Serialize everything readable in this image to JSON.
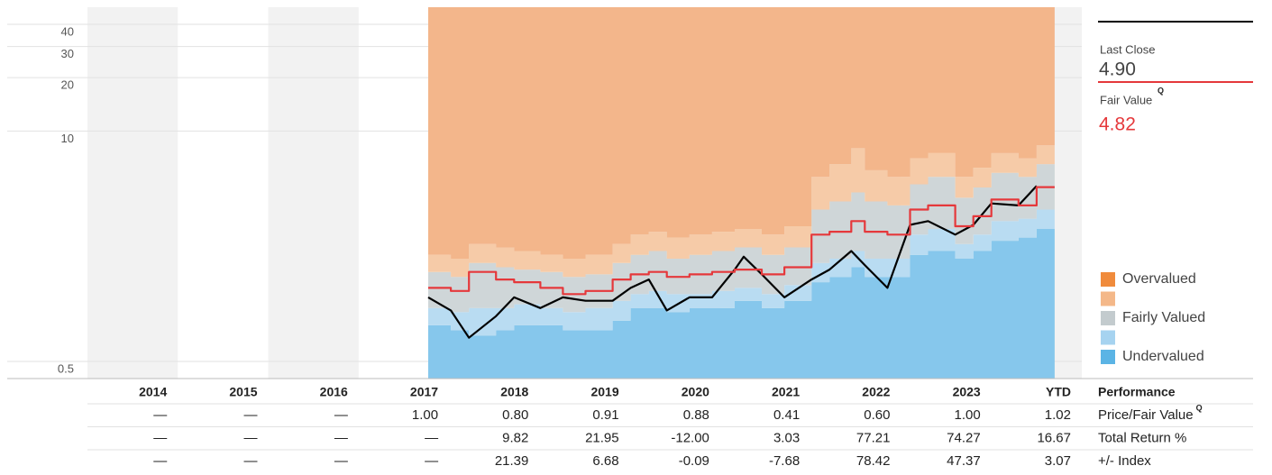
{
  "chart_data": {
    "type": "line",
    "log_scale": true,
    "grid": true,
    "ylim": [
      0.4,
      50
    ],
    "yticks": [
      0.5,
      10,
      20,
      30,
      40
    ],
    "xlim": [
      2014,
      2025
    ],
    "x": [
      2017.77,
      2018.02,
      2018.22,
      2018.52,
      2018.72,
      2019.01,
      2019.26,
      2019.51,
      2019.81,
      2020.01,
      2020.21,
      2020.41,
      2020.66,
      2020.91,
      2021.16,
      2021.26,
      2021.46,
      2021.71,
      2022.01,
      2022.21,
      2022.45,
      2022.6,
      2022.85,
      2023.1,
      2023.3,
      2023.6,
      2023.8,
      2024.0,
      2024.3,
      2024.5
    ],
    "series": [
      {
        "name": "Last Close",
        "color": "#000000",
        "latest_label": "4.90",
        "values": [
          1.15,
          0.97,
          0.68,
          0.9,
          1.15,
          1.0,
          1.15,
          1.1,
          1.1,
          1.3,
          1.45,
          0.97,
          1.15,
          1.15,
          1.65,
          1.95,
          1.55,
          1.15,
          1.45,
          1.65,
          2.1,
          1.75,
          1.3,
          2.95,
          3.1,
          2.6,
          2.95,
          3.9,
          3.8,
          4.9
        ]
      },
      {
        "name": "Fair Value",
        "color": "#e5383b",
        "step": true,
        "latest_label": "4.82",
        "values": [
          1.3,
          1.25,
          1.6,
          1.45,
          1.4,
          1.3,
          1.2,
          1.25,
          1.45,
          1.55,
          1.6,
          1.5,
          1.55,
          1.6,
          1.65,
          1.65,
          1.55,
          1.7,
          2.6,
          2.7,
          3.1,
          2.7,
          2.6,
          3.6,
          3.8,
          2.9,
          3.3,
          4.1,
          3.8,
          4.82
        ]
      }
    ],
    "bands": [
      {
        "name": "Undervalued",
        "color": "#5bb4e5",
        "chart_color": "#86c7ec",
        "values": [
          0.8,
          0.75,
          0.7,
          0.75,
          0.8,
          0.8,
          0.75,
          0.75,
          0.85,
          1.0,
          1.0,
          0.95,
          1.0,
          1.0,
          1.1,
          1.1,
          1.0,
          1.1,
          1.4,
          1.5,
          1.7,
          1.5,
          1.5,
          2.0,
          2.1,
          1.9,
          2.1,
          2.4,
          2.5,
          2.8
        ]
      },
      {
        "name": null,
        "color": "#a6d3f0",
        "chart_color": "#b9dcf2",
        "values": [
          1.0,
          0.95,
          1.0,
          1.0,
          1.05,
          1.0,
          0.95,
          1.0,
          1.1,
          1.2,
          1.25,
          1.2,
          1.2,
          1.25,
          1.3,
          1.3,
          1.2,
          1.35,
          1.8,
          1.9,
          2.1,
          1.9,
          1.9,
          2.6,
          2.8,
          2.3,
          2.6,
          3.1,
          3.2,
          3.6
        ]
      },
      {
        "name": "Fairly Valued",
        "color": "#c3cbce",
        "chart_color": "#cfd6d8",
        "values": [
          1.6,
          1.5,
          1.8,
          1.7,
          1.65,
          1.6,
          1.5,
          1.55,
          1.8,
          2.0,
          2.1,
          1.9,
          2.0,
          2.1,
          2.2,
          2.2,
          2.0,
          2.2,
          3.6,
          4.0,
          4.5,
          4.0,
          3.8,
          5.0,
          5.5,
          4.2,
          4.8,
          5.8,
          5.5,
          6.5
        ]
      },
      {
        "name": null,
        "color": "#f4b889",
        "chart_color": "#f6cba8",
        "values": [
          2.0,
          1.9,
          2.3,
          2.2,
          2.1,
          2.0,
          1.9,
          2.0,
          2.3,
          2.6,
          2.7,
          2.5,
          2.6,
          2.7,
          2.8,
          2.8,
          2.6,
          2.9,
          5.5,
          6.5,
          8.0,
          6.0,
          5.5,
          7.0,
          7.5,
          5.5,
          6.2,
          7.5,
          7.0,
          8.3
        ]
      },
      {
        "name": "Overvalued",
        "color": "#f08b3c",
        "chart_color": "#f3b68b"
      }
    ],
    "badge": "Q"
  },
  "performance": {
    "title": "Performance",
    "columns": [
      "2014",
      "2015",
      "2016",
      "2017",
      "2018",
      "2019",
      "2020",
      "2021",
      "2022",
      "2023",
      "YTD"
    ],
    "rows": [
      {
        "label": "Price/Fair Value",
        "badge": true,
        "cells": [
          "—",
          "—",
          "—",
          "1.00",
          "0.80",
          "0.91",
          "0.88",
          "0.41",
          "0.60",
          "1.00",
          "1.02"
        ]
      },
      {
        "label": "Total Return %",
        "cells": [
          "—",
          "—",
          "—",
          "—",
          "9.82",
          "21.95",
          "-12.00",
          "3.03",
          "77.21",
          "74.27",
          "16.67"
        ]
      },
      {
        "label": "+/- Index",
        "cells": [
          "—",
          "—",
          "—",
          "—",
          "21.39",
          "6.68",
          "-0.09",
          "-7.68",
          "78.42",
          "47.37",
          "3.07"
        ]
      }
    ]
  }
}
